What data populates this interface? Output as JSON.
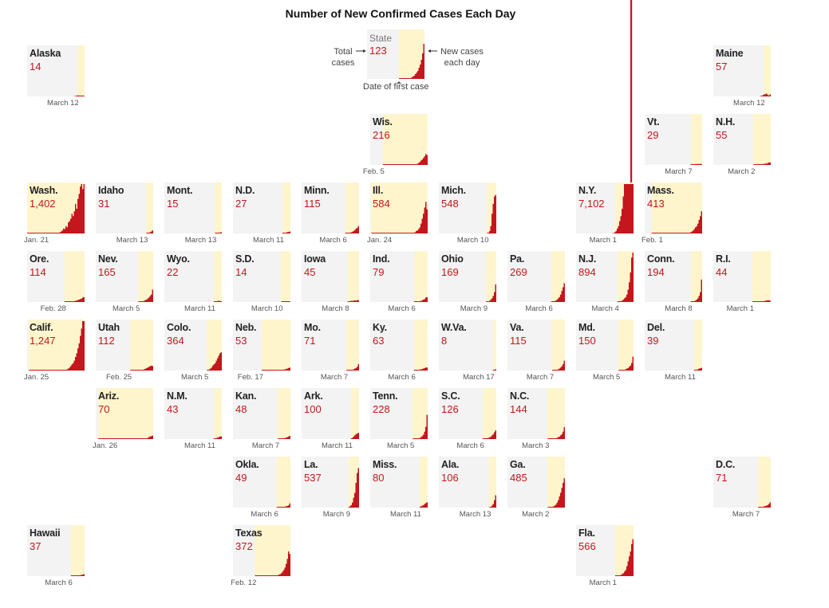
{
  "title": "Number of New Confirmed Cases Each Day",
  "legend": {
    "state": "State",
    "total": "123",
    "total_cases": "Total\ncases",
    "new_cases": "New cases\neach day",
    "first_case": "Date of first case"
  },
  "colors": {
    "tile_bg": "#f3f3f3",
    "since_first_case": "#fff5cc",
    "bar": "#c4161c"
  },
  "chart_data": {
    "type": "bar",
    "title": "Number of New Confirmed Cases Each Day",
    "layout": "tile-grid-map of U.S. states",
    "states": [
      {
        "abbr": "Alaska",
        "total": "14",
        "first_case": "March 12",
        "col": 0,
        "row": 0,
        "onset": 0.87,
        "latest": [
          0,
          1,
          2,
          3,
          4,
          3,
          2,
          3,
          1,
          0
        ]
      },
      {
        "abbr": "Maine",
        "total": "57",
        "first_case": "March 12",
        "col": 10,
        "row": 0,
        "onset": 0.87,
        "latest": [
          0,
          2,
          3,
          5,
          8,
          9,
          12,
          6,
          4,
          8
        ]
      },
      {
        "abbr": "Wis.",
        "total": "216",
        "first_case": "Feb. 5",
        "col": 5,
        "row": 1,
        "onset": 0.22,
        "latest": [
          0,
          1,
          3,
          5,
          8,
          12,
          18,
          22,
          28,
          35,
          44,
          40
        ]
      },
      {
        "abbr": "Vt.",
        "total": "29",
        "first_case": "March 7",
        "col": 9,
        "row": 1,
        "onset": 0.8,
        "latest": [
          0,
          1,
          2,
          1,
          3,
          4,
          2,
          5,
          3,
          4,
          4
        ]
      },
      {
        "abbr": "N.H.",
        "total": "55",
        "first_case": "March 2",
        "col": 10,
        "row": 1,
        "onset": 0.7,
        "latest": [
          0,
          0,
          1,
          0,
          2,
          2,
          3,
          4,
          4,
          6,
          5,
          8,
          10,
          10
        ]
      },
      {
        "abbr": "Wash.",
        "total": "1,402",
        "first_case": "Jan. 21",
        "col": 0,
        "row": 2,
        "onset": 0.0,
        "latest": [
          2,
          5,
          8,
          12,
          20,
          18,
          30,
          25,
          45,
          50,
          60,
          80,
          70,
          90,
          120,
          100,
          140,
          160,
          190,
          210,
          180,
          200
        ]
      },
      {
        "abbr": "Idaho",
        "total": "31",
        "first_case": "March 13",
        "col": 1,
        "row": 2,
        "onset": 0.88,
        "latest": [
          0,
          2,
          3,
          5,
          8,
          13
        ]
      },
      {
        "abbr": "Mont.",
        "total": "15",
        "first_case": "March 13",
        "col": 2,
        "row": 2,
        "onset": 0.88,
        "latest": [
          0,
          1,
          3,
          2,
          4,
          5
        ]
      },
      {
        "abbr": "N.D.",
        "total": "27",
        "first_case": "March 11",
        "col": 3,
        "row": 2,
        "onset": 0.86,
        "latest": [
          0,
          1,
          1,
          2,
          3,
          6,
          6,
          8
        ]
      },
      {
        "abbr": "Minn.",
        "total": "115",
        "first_case": "March 6",
        "col": 4,
        "row": 2,
        "onset": 0.76,
        "latest": [
          0,
          1,
          1,
          2,
          3,
          5,
          7,
          10,
          14,
          20,
          22,
          30
        ]
      },
      {
        "abbr": "Ill.",
        "total": "584",
        "first_case": "Jan. 24",
        "col": 5,
        "row": 2,
        "onset": 0.02,
        "latest": [
          1,
          2,
          5,
          10,
          12,
          18,
          25,
          40,
          60,
          80,
          105,
          128,
          98
        ]
      },
      {
        "abbr": "Mich.",
        "total": "548",
        "first_case": "March 10",
        "col": 6,
        "row": 2,
        "onset": 0.84,
        "latest": [
          0,
          2,
          10,
          30,
          80,
          120,
          150,
          156
        ]
      },
      {
        "abbr": "N.Y.",
        "total": "7,102",
        "first_case": "March 1",
        "col": 8,
        "row": 2,
        "onset": 0.68,
        "latest": [
          1,
          2,
          5,
          10,
          20,
          30,
          50,
          70,
          100,
          150,
          200,
          250,
          400,
          600,
          900,
          1200,
          1800,
          2600
        ]
      },
      {
        "abbr": "Mass.",
        "total": "413",
        "first_case": "Feb. 1",
        "col": 9,
        "row": 2,
        "onset": 0.12,
        "latest": [
          0,
          1,
          2,
          3,
          5,
          8,
          12,
          18,
          25,
          30,
          40,
          55,
          70,
          90
        ]
      },
      {
        "abbr": "Ore.",
        "total": "114",
        "first_case": "Feb. 28",
        "col": 0,
        "row": 3,
        "onset": 0.65,
        "latest": [
          0,
          1,
          2,
          3,
          4,
          5,
          6,
          8,
          10,
          12,
          14,
          18,
          20
        ]
      },
      {
        "abbr": "Nev.",
        "total": "165",
        "first_case": "March 5",
        "col": 1,
        "row": 3,
        "onset": 0.74,
        "latest": [
          0,
          1,
          2,
          3,
          5,
          8,
          10,
          14,
          18,
          25,
          30,
          50
        ]
      },
      {
        "abbr": "Wyo.",
        "total": "22",
        "first_case": "March 11",
        "col": 2,
        "row": 3,
        "onset": 0.86,
        "latest": [
          0,
          1,
          2,
          3,
          4,
          5,
          4,
          3
        ]
      },
      {
        "abbr": "S.D.",
        "total": "14",
        "first_case": "March 10",
        "col": 3,
        "row": 3,
        "onset": 0.84,
        "latest": [
          0,
          1,
          2,
          1,
          3,
          2,
          2,
          3
        ]
      },
      {
        "abbr": "Iowa",
        "total": "45",
        "first_case": "March 8",
        "col": 4,
        "row": 3,
        "onset": 0.8,
        "latest": [
          0,
          3,
          5,
          4,
          6,
          7,
          5,
          8,
          7
        ]
      },
      {
        "abbr": "Ind.",
        "total": "79",
        "first_case": "March 6",
        "col": 5,
        "row": 3,
        "onset": 0.76,
        "latest": [
          0,
          1,
          1,
          2,
          3,
          5,
          7,
          10,
          12,
          18,
          20
        ]
      },
      {
        "abbr": "Ohio",
        "total": "169",
        "first_case": "March 9",
        "col": 6,
        "row": 3,
        "onset": 0.82,
        "latest": [
          0,
          1,
          2,
          5,
          10,
          15,
          25,
          40,
          71
        ]
      },
      {
        "abbr": "Pa.",
        "total": "269",
        "first_case": "March 6",
        "col": 7,
        "row": 3,
        "onset": 0.76,
        "latest": [
          0,
          1,
          2,
          4,
          6,
          10,
          15,
          20,
          30,
          45,
          60,
          76
        ]
      },
      {
        "abbr": "N.J.",
        "total": "894",
        "first_case": "March 4",
        "col": 8,
        "row": 3,
        "onset": 0.72,
        "latest": [
          0,
          1,
          2,
          4,
          5,
          10,
          15,
          20,
          30,
          50,
          80,
          120,
          180,
          377
        ]
      },
      {
        "abbr": "Conn.",
        "total": "194",
        "first_case": "March 8",
        "col": 9,
        "row": 3,
        "onset": 0.8,
        "latest": [
          0,
          1,
          2,
          4,
          6,
          10,
          15,
          25,
          40,
          91
        ]
      },
      {
        "abbr": "R.I.",
        "total": "44",
        "first_case": "March 1",
        "col": 10,
        "row": 3,
        "onset": 0.68,
        "latest": [
          0,
          1,
          0,
          1,
          1,
          2,
          2,
          3,
          4,
          5,
          6,
          7,
          7,
          5
        ]
      },
      {
        "abbr": "Calif.",
        "total": "1,247",
        "first_case": "Jan. 25",
        "col": 0,
        "row": 4,
        "onset": 0.03,
        "latest": [
          1,
          2,
          3,
          5,
          8,
          12,
          18,
          25,
          30,
          40,
          55,
          70,
          90,
          110,
          140,
          170,
          200,
          240
        ]
      },
      {
        "abbr": "Utah",
        "total": "112",
        "first_case": "Feb. 25",
        "col": 1,
        "row": 4,
        "onset": 0.6,
        "latest": [
          0,
          1,
          1,
          2,
          3,
          5,
          7,
          10,
          12,
          15,
          18,
          20,
          18
        ]
      },
      {
        "abbr": "Colo.",
        "total": "364",
        "first_case": "March 5",
        "col": 2,
        "row": 4,
        "onset": 0.74,
        "latest": [
          0,
          2,
          4,
          8,
          12,
          20,
          25,
          30,
          40,
          50,
          60,
          70,
          74
        ]
      },
      {
        "abbr": "Neb.",
        "total": "53",
        "first_case": "Feb. 17",
        "col": 3,
        "row": 4,
        "onset": 0.5,
        "latest": [
          0,
          0,
          0,
          0,
          1,
          0,
          2,
          3,
          5,
          6,
          8,
          10,
          12
        ]
      },
      {
        "abbr": "Mo.",
        "total": "71",
        "first_case": "March 7",
        "col": 4,
        "row": 4,
        "onset": 0.78,
        "latest": [
          0,
          1,
          1,
          2,
          3,
          5,
          8,
          10,
          15,
          26
        ]
      },
      {
        "abbr": "Ky.",
        "total": "63",
        "first_case": "March 6",
        "col": 5,
        "row": 4,
        "onset": 0.76,
        "latest": [
          0,
          1,
          2,
          3,
          4,
          5,
          6,
          8,
          10,
          12,
          12
        ]
      },
      {
        "abbr": "W.Va.",
        "total": "8",
        "first_case": "March 17",
        "col": 6,
        "row": 4,
        "onset": 0.94,
        "latest": [
          1,
          2,
          5
        ]
      },
      {
        "abbr": "Va.",
        "total": "115",
        "first_case": "March 7",
        "col": 7,
        "row": 4,
        "onset": 0.78,
        "latest": [
          0,
          1,
          2,
          3,
          5,
          8,
          12,
          18,
          26,
          40
        ]
      },
      {
        "abbr": "Md.",
        "total": "150",
        "first_case": "March 5",
        "col": 8,
        "row": 4,
        "onset": 0.74,
        "latest": [
          0,
          1,
          2,
          3,
          5,
          8,
          10,
          15,
          20,
          30,
          56
        ]
      },
      {
        "abbr": "Del.",
        "total": "39",
        "first_case": "March 11",
        "col": 9,
        "row": 4,
        "onset": 0.86,
        "latest": [
          0,
          1,
          3,
          2,
          5,
          8,
          9,
          11
        ]
      },
      {
        "abbr": "Ariz.",
        "total": "70",
        "first_case": "Jan. 26",
        "col": 1,
        "row": 5,
        "onset": 0.04,
        "latest": [
          0,
          1,
          0,
          0,
          1,
          2,
          3,
          5,
          8,
          10,
          12,
          14
        ]
      },
      {
        "abbr": "N.M.",
        "total": "43",
        "first_case": "March 11",
        "col": 2,
        "row": 5,
        "onset": 0.86,
        "latest": [
          0,
          1,
          3,
          4,
          6,
          8,
          10,
          11
        ]
      },
      {
        "abbr": "Kan.",
        "total": "48",
        "first_case": "March 7",
        "col": 3,
        "row": 5,
        "onset": 0.78,
        "latest": [
          0,
          1,
          1,
          2,
          3,
          4,
          6,
          8,
          10,
          13
        ]
      },
      {
        "abbr": "Ark.",
        "total": "100",
        "first_case": "March 11",
        "col": 4,
        "row": 5,
        "onset": 0.86,
        "latest": [
          0,
          2,
          5,
          10,
          15,
          20,
          22,
          26
        ]
      },
      {
        "abbr": "Tenn.",
        "total": "228",
        "first_case": "March 5",
        "col": 5,
        "row": 5,
        "onset": 0.74,
        "latest": [
          0,
          1,
          2,
          3,
          5,
          8,
          12,
          18,
          30,
          50,
          98
        ]
      },
      {
        "abbr": "S.C.",
        "total": "126",
        "first_case": "March 6",
        "col": 6,
        "row": 5,
        "onset": 0.76,
        "latest": [
          0,
          1,
          2,
          3,
          5,
          7,
          10,
          15,
          20,
          28,
          35
        ]
      },
      {
        "abbr": "N.C.",
        "total": "144",
        "first_case": "March 3",
        "col": 7,
        "row": 5,
        "onset": 0.7,
        "latest": [
          0,
          1,
          1,
          2,
          3,
          5,
          8,
          10,
          15,
          20,
          30,
          48
        ]
      },
      {
        "abbr": "Okla.",
        "total": "49",
        "first_case": "March 6",
        "col": 3,
        "row": 6,
        "onset": 0.76,
        "latest": [
          0,
          1,
          1,
          2,
          3,
          4,
          5,
          7,
          9,
          17
        ]
      },
      {
        "abbr": "La.",
        "total": "537",
        "first_case": "March 9",
        "col": 4,
        "row": 6,
        "onset": 0.82,
        "latest": [
          0,
          2,
          5,
          10,
          20,
          40,
          60,
          100,
          140,
          160
        ]
      },
      {
        "abbr": "Miss.",
        "total": "80",
        "first_case": "March 11",
        "col": 5,
        "row": 6,
        "onset": 0.86,
        "latest": [
          0,
          2,
          5,
          8,
          10,
          15,
          18,
          22
        ]
      },
      {
        "abbr": "Ala.",
        "total": "106",
        "first_case": "March 13",
        "col": 6,
        "row": 6,
        "onset": 0.88,
        "latest": [
          0,
          3,
          8,
          15,
          30,
          50
        ]
      },
      {
        "abbr": "Ga.",
        "total": "485",
        "first_case": "March 2",
        "col": 7,
        "row": 6,
        "onset": 0.7,
        "latest": [
          0,
          1,
          2,
          3,
          5,
          8,
          12,
          20,
          30,
          45,
          60,
          80,
          100,
          119
        ]
      },
      {
        "abbr": "D.C.",
        "total": "71",
        "first_case": "March 7",
        "col": 10,
        "row": 6,
        "onset": 0.78,
        "latest": [
          0,
          1,
          2,
          3,
          5,
          6,
          8,
          10,
          15,
          21
        ]
      },
      {
        "abbr": "Hawaii",
        "total": "37",
        "first_case": "March 6",
        "col": 0,
        "row": 7,
        "onset": 0.76,
        "latest": [
          0,
          1,
          1,
          2,
          2,
          3,
          4,
          5,
          6,
          8
        ]
      },
      {
        "abbr": "Texas",
        "total": "372",
        "first_case": "Feb. 12",
        "col": 3,
        "row": 7,
        "onset": 0.38,
        "latest": [
          1,
          0,
          0,
          2,
          4,
          6,
          8,
          12,
          18,
          25,
          35,
          50,
          70,
          100,
          90
        ]
      },
      {
        "abbr": "Fla.",
        "total": "566",
        "first_case": "March 1",
        "col": 8,
        "row": 7,
        "onset": 0.68,
        "latest": [
          0,
          1,
          2,
          3,
          5,
          8,
          12,
          18,
          25,
          40,
          60,
          80,
          100,
          130,
          150
        ]
      }
    ]
  }
}
